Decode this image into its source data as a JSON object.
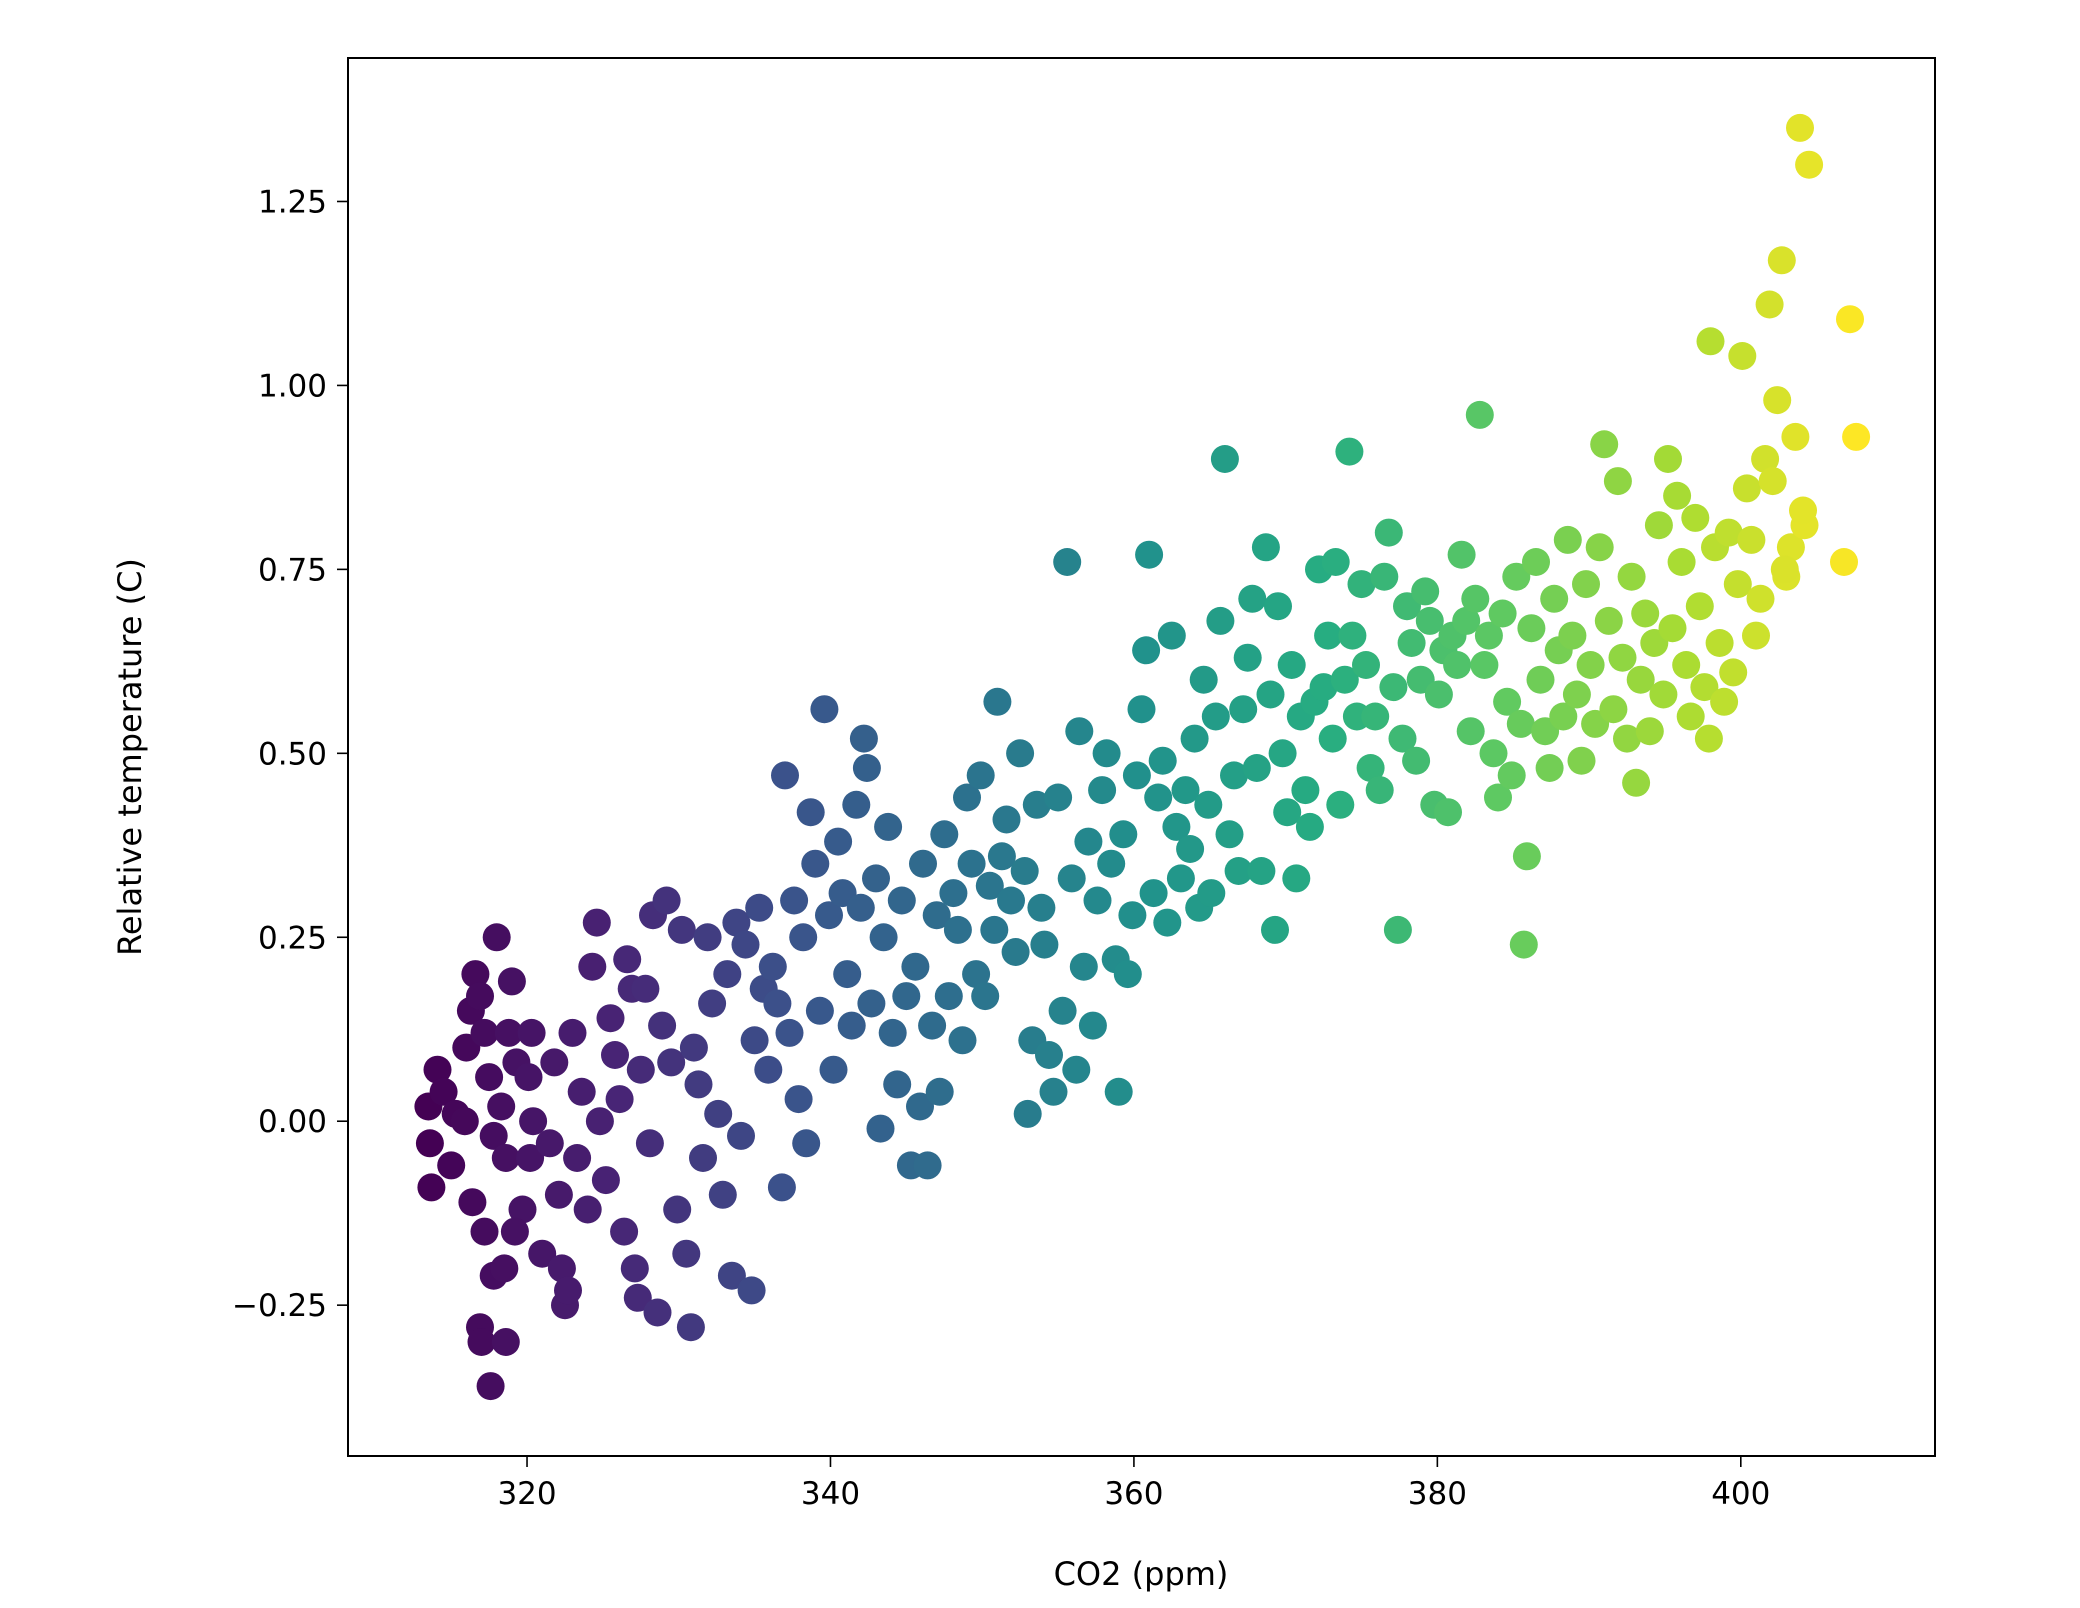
{
  "chart_data": {
    "type": "scatter",
    "title": "",
    "xlabel": "CO2 (ppm)",
    "ylabel": "Relative temperature (C)",
    "xlim": [
      308.2,
      412.8
    ],
    "ylim": [
      -0.455,
      1.445
    ],
    "xticks": [
      320,
      340,
      360,
      380,
      400
    ],
    "xtick_labels": [
      "320",
      "340",
      "360",
      "380",
      "400"
    ],
    "yticks": [
      -0.25,
      0.0,
      0.25,
      0.5,
      0.75,
      1.0,
      1.25
    ],
    "ytick_labels": [
      "−0.25",
      "0.00",
      "0.25",
      "0.50",
      "0.75",
      "1.00",
      "1.25"
    ],
    "grid": false,
    "legend": "none",
    "colormap": "viridis",
    "color_encodes": "x (CO2)",
    "marker_color_range": [
      "#440154",
      "#fde725"
    ],
    "points": [
      [
        313.5,
        0.02
      ],
      [
        313.6,
        -0.03
      ],
      [
        313.7,
        -0.09
      ],
      [
        314.1,
        0.07
      ],
      [
        314.5,
        0.04
      ],
      [
        315.0,
        -0.06
      ],
      [
        315.3,
        0.01
      ],
      [
        315.9,
        0.0
      ],
      [
        316.4,
        -0.11
      ],
      [
        316.0,
        0.1
      ],
      [
        316.3,
        0.15
      ],
      [
        316.6,
        0.2
      ],
      [
        316.9,
        0.17
      ],
      [
        317.2,
        0.12
      ],
      [
        317.5,
        0.06
      ],
      [
        317.8,
        -0.02
      ],
      [
        318.0,
        0.25
      ],
      [
        318.3,
        0.02
      ],
      [
        318.6,
        -0.05
      ],
      [
        319.0,
        0.19
      ],
      [
        319.3,
        0.08
      ],
      [
        319.7,
        -0.12
      ],
      [
        320.1,
        0.06
      ],
      [
        320.4,
        0.0
      ],
      [
        316.9,
        -0.28
      ],
      [
        317.0,
        -0.3
      ],
      [
        317.6,
        -0.36
      ],
      [
        318.6,
        -0.3
      ],
      [
        317.2,
        -0.15
      ],
      [
        317.8,
        -0.21
      ],
      [
        318.5,
        -0.2
      ],
      [
        319.2,
        -0.15
      ],
      [
        318.8,
        0.12
      ],
      [
        320.2,
        -0.05
      ],
      [
        320.3,
        0.12
      ],
      [
        321.0,
        -0.18
      ],
      [
        321.5,
        -0.03
      ],
      [
        321.8,
        0.08
      ],
      [
        322.1,
        -0.1
      ],
      [
        322.3,
        -0.2
      ],
      [
        322.5,
        -0.25
      ],
      [
        322.7,
        -0.23
      ],
      [
        323.0,
        0.12
      ],
      [
        323.3,
        -0.05
      ],
      [
        323.6,
        0.04
      ],
      [
        324.0,
        -0.12
      ],
      [
        324.3,
        0.21
      ],
      [
        324.6,
        0.27
      ],
      [
        324.8,
        0.0
      ],
      [
        325.2,
        -0.08
      ],
      [
        325.5,
        0.14
      ],
      [
        325.8,
        0.09
      ],
      [
        326.1,
        0.03
      ],
      [
        326.4,
        -0.15
      ],
      [
        326.6,
        0.22
      ],
      [
        326.9,
        0.18
      ],
      [
        327.1,
        -0.2
      ],
      [
        327.3,
        -0.24
      ],
      [
        327.5,
        0.07
      ],
      [
        327.8,
        0.18
      ],
      [
        328.1,
        -0.03
      ],
      [
        328.3,
        0.28
      ],
      [
        328.6,
        -0.26
      ],
      [
        328.9,
        0.13
      ],
      [
        329.2,
        0.3
      ],
      [
        329.5,
        0.08
      ],
      [
        329.9,
        -0.12
      ],
      [
        330.2,
        0.26
      ],
      [
        330.5,
        -0.18
      ],
      [
        330.8,
        -0.28
      ],
      [
        331.0,
        0.1
      ],
      [
        331.3,
        0.05
      ],
      [
        331.6,
        -0.05
      ],
      [
        331.9,
        0.25
      ],
      [
        332.2,
        0.16
      ],
      [
        332.6,
        0.01
      ],
      [
        332.9,
        -0.1
      ],
      [
        333.2,
        0.2
      ],
      [
        333.5,
        -0.21
      ],
      [
        333.8,
        0.27
      ],
      [
        334.1,
        -0.02
      ],
      [
        334.4,
        0.24
      ],
      [
        334.8,
        -0.23
      ],
      [
        335.0,
        0.11
      ],
      [
        335.3,
        0.29
      ],
      [
        335.6,
        0.18
      ],
      [
        335.9,
        0.07
      ],
      [
        336.2,
        0.21
      ],
      [
        336.5,
        0.16
      ],
      [
        336.8,
        -0.09
      ],
      [
        337.0,
        0.47
      ],
      [
        337.3,
        0.12
      ],
      [
        337.6,
        0.3
      ],
      [
        337.9,
        0.03
      ],
      [
        338.2,
        0.25
      ],
      [
        338.4,
        -0.03
      ],
      [
        338.7,
        0.42
      ],
      [
        339.0,
        0.35
      ],
      [
        339.3,
        0.15
      ],
      [
        339.6,
        0.56
      ],
      [
        339.9,
        0.28
      ],
      [
        340.2,
        0.07
      ],
      [
        340.5,
        0.38
      ],
      [
        340.8,
        0.31
      ],
      [
        341.1,
        0.2
      ],
      [
        341.4,
        0.13
      ],
      [
        341.7,
        0.43
      ],
      [
        342.0,
        0.29
      ],
      [
        342.2,
        0.52
      ],
      [
        342.4,
        0.48
      ],
      [
        342.7,
        0.16
      ],
      [
        343.0,
        0.33
      ],
      [
        343.3,
        -0.01
      ],
      [
        343.5,
        0.25
      ],
      [
        343.8,
        0.4
      ],
      [
        344.1,
        0.12
      ],
      [
        344.4,
        0.05
      ],
      [
        344.7,
        0.3
      ],
      [
        345.0,
        0.17
      ],
      [
        345.3,
        -0.06
      ],
      [
        345.6,
        0.21
      ],
      [
        345.9,
        0.02
      ],
      [
        346.1,
        0.35
      ],
      [
        346.4,
        -0.06
      ],
      [
        346.7,
        0.13
      ],
      [
        347.0,
        0.28
      ],
      [
        347.2,
        0.04
      ],
      [
        347.5,
        0.39
      ],
      [
        347.8,
        0.17
      ],
      [
        348.1,
        0.31
      ],
      [
        348.4,
        0.26
      ],
      [
        348.7,
        0.11
      ],
      [
        349.0,
        0.44
      ],
      [
        349.3,
        0.35
      ],
      [
        349.6,
        0.2
      ],
      [
        349.9,
        0.47
      ],
      [
        350.2,
        0.17
      ],
      [
        350.5,
        0.32
      ],
      [
        350.8,
        0.26
      ],
      [
        351.0,
        0.57
      ],
      [
        351.3,
        0.36
      ],
      [
        351.6,
        0.41
      ],
      [
        351.9,
        0.3
      ],
      [
        352.2,
        0.23
      ],
      [
        352.5,
        0.5
      ],
      [
        352.8,
        0.34
      ],
      [
        353.0,
        0.01
      ],
      [
        353.3,
        0.11
      ],
      [
        353.6,
        0.43
      ],
      [
        353.9,
        0.29
      ],
      [
        354.1,
        0.24
      ],
      [
        354.4,
        0.09
      ],
      [
        354.7,
        0.04
      ],
      [
        355.0,
        0.44
      ],
      [
        355.3,
        0.15
      ],
      [
        355.6,
        0.76
      ],
      [
        355.9,
        0.33
      ],
      [
        356.2,
        0.07
      ],
      [
        356.4,
        0.53
      ],
      [
        356.7,
        0.21
      ],
      [
        357.0,
        0.38
      ],
      [
        357.3,
        0.13
      ],
      [
        357.6,
        0.3
      ],
      [
        357.9,
        0.45
      ],
      [
        358.2,
        0.5
      ],
      [
        358.5,
        0.35
      ],
      [
        358.8,
        0.22
      ],
      [
        359.0,
        0.04
      ],
      [
        359.3,
        0.39
      ],
      [
        359.6,
        0.2
      ],
      [
        359.9,
        0.28
      ],
      [
        360.2,
        0.47
      ],
      [
        360.5,
        0.56
      ],
      [
        360.8,
        0.64
      ],
      [
        361.0,
        0.77
      ],
      [
        361.3,
        0.31
      ],
      [
        361.6,
        0.44
      ],
      [
        361.9,
        0.49
      ],
      [
        362.2,
        0.27
      ],
      [
        362.5,
        0.66
      ],
      [
        362.8,
        0.4
      ],
      [
        363.1,
        0.33
      ],
      [
        363.4,
        0.45
      ],
      [
        363.7,
        0.37
      ],
      [
        364.0,
        0.52
      ],
      [
        364.3,
        0.29
      ],
      [
        364.6,
        0.6
      ],
      [
        364.9,
        0.43
      ],
      [
        365.1,
        0.31
      ],
      [
        365.4,
        0.55
      ],
      [
        365.7,
        0.68
      ],
      [
        366.0,
        0.9
      ],
      [
        366.3,
        0.39
      ],
      [
        366.6,
        0.47
      ],
      [
        366.9,
        0.34
      ],
      [
        367.2,
        0.56
      ],
      [
        367.5,
        0.63
      ],
      [
        367.8,
        0.71
      ],
      [
        368.1,
        0.48
      ],
      [
        368.4,
        0.34
      ],
      [
        368.7,
        0.78
      ],
      [
        369.0,
        0.58
      ],
      [
        369.3,
        0.26
      ],
      [
        369.5,
        0.7
      ],
      [
        369.8,
        0.5
      ],
      [
        370.1,
        0.42
      ],
      [
        370.4,
        0.62
      ],
      [
        370.7,
        0.33
      ],
      [
        371.0,
        0.55
      ],
      [
        371.3,
        0.45
      ],
      [
        371.6,
        0.4
      ],
      [
        371.9,
        0.57
      ],
      [
        372.2,
        0.75
      ],
      [
        372.5,
        0.59
      ],
      [
        372.8,
        0.66
      ],
      [
        373.1,
        0.52
      ],
      [
        373.3,
        0.76
      ],
      [
        373.6,
        0.43
      ],
      [
        373.9,
        0.6
      ],
      [
        374.2,
        0.91
      ],
      [
        374.4,
        0.66
      ],
      [
        374.7,
        0.55
      ],
      [
        375.0,
        0.73
      ],
      [
        375.3,
        0.62
      ],
      [
        375.6,
        0.48
      ],
      [
        375.9,
        0.55
      ],
      [
        376.2,
        0.45
      ],
      [
        376.5,
        0.74
      ],
      [
        376.8,
        0.8
      ],
      [
        377.1,
        0.59
      ],
      [
        377.4,
        0.26
      ],
      [
        377.7,
        0.52
      ],
      [
        378.0,
        0.7
      ],
      [
        378.3,
        0.65
      ],
      [
        378.6,
        0.49
      ],
      [
        378.9,
        0.6
      ],
      [
        379.2,
        0.72
      ],
      [
        379.5,
        0.68
      ],
      [
        379.8,
        0.43
      ],
      [
        380.1,
        0.58
      ],
      [
        380.4,
        0.64
      ],
      [
        380.7,
        0.42
      ],
      [
        381.0,
        0.66
      ],
      [
        381.3,
        0.62
      ],
      [
        381.6,
        0.77
      ],
      [
        381.9,
        0.68
      ],
      [
        382.2,
        0.53
      ],
      [
        382.5,
        0.71
      ],
      [
        382.8,
        0.96
      ],
      [
        383.1,
        0.62
      ],
      [
        383.4,
        0.66
      ],
      [
        383.7,
        0.5
      ],
      [
        384.0,
        0.44
      ],
      [
        384.3,
        0.69
      ],
      [
        384.6,
        0.57
      ],
      [
        384.9,
        0.47
      ],
      [
        385.2,
        0.74
      ],
      [
        385.5,
        0.54
      ],
      [
        385.7,
        0.24
      ],
      [
        385.9,
        0.36
      ],
      [
        386.2,
        0.67
      ],
      [
        386.5,
        0.76
      ],
      [
        386.8,
        0.6
      ],
      [
        387.1,
        0.53
      ],
      [
        387.4,
        0.48
      ],
      [
        387.7,
        0.71
      ],
      [
        388.0,
        0.64
      ],
      [
        388.3,
        0.55
      ],
      [
        388.6,
        0.79
      ],
      [
        388.9,
        0.66
      ],
      [
        389.2,
        0.58
      ],
      [
        389.5,
        0.49
      ],
      [
        389.8,
        0.73
      ],
      [
        390.1,
        0.62
      ],
      [
        390.4,
        0.54
      ],
      [
        390.7,
        0.78
      ],
      [
        391.0,
        0.92
      ],
      [
        391.3,
        0.68
      ],
      [
        391.6,
        0.56
      ],
      [
        391.9,
        0.87
      ],
      [
        392.2,
        0.63
      ],
      [
        392.5,
        0.52
      ],
      [
        392.8,
        0.74
      ],
      [
        393.1,
        0.46
      ],
      [
        393.4,
        0.6
      ],
      [
        393.7,
        0.69
      ],
      [
        394.0,
        0.53
      ],
      [
        394.3,
        0.65
      ],
      [
        394.6,
        0.81
      ],
      [
        394.9,
        0.58
      ],
      [
        395.2,
        0.9
      ],
      [
        395.5,
        0.67
      ],
      [
        395.8,
        0.85
      ],
      [
        396.1,
        0.76
      ],
      [
        396.4,
        0.62
      ],
      [
        396.7,
        0.55
      ],
      [
        397.0,
        0.82
      ],
      [
        397.3,
        0.7
      ],
      [
        397.6,
        0.59
      ],
      [
        397.9,
        0.52
      ],
      [
        398.0,
        1.06
      ],
      [
        398.3,
        0.78
      ],
      [
        398.6,
        0.65
      ],
      [
        398.9,
        0.57
      ],
      [
        399.2,
        0.8
      ],
      [
        399.5,
        0.61
      ],
      [
        399.8,
        0.73
      ],
      [
        400.1,
        1.04
      ],
      [
        400.4,
        0.86
      ],
      [
        400.7,
        0.79
      ],
      [
        401.0,
        0.66
      ],
      [
        401.3,
        0.71
      ],
      [
        401.6,
        0.9
      ],
      [
        401.9,
        1.11
      ],
      [
        402.1,
        0.87
      ],
      [
        402.4,
        0.98
      ],
      [
        402.7,
        1.17
      ],
      [
        403.0,
        0.74
      ],
      [
        403.3,
        0.78
      ],
      [
        403.6,
        0.93
      ],
      [
        403.9,
        1.35
      ],
      [
        404.2,
        0.81
      ],
      [
        404.5,
        1.3
      ],
      [
        406.8,
        0.76
      ],
      [
        407.2,
        1.09
      ],
      [
        407.6,
        0.93
      ],
      [
        404.1,
        0.83
      ],
      [
        402.9,
        0.75
      ]
    ]
  }
}
